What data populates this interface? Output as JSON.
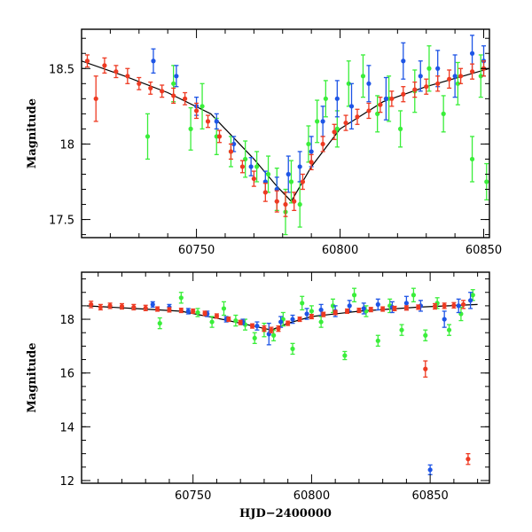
{
  "chart_data": [
    {
      "type": "scatter",
      "title": "",
      "xlabel": "",
      "ylabel": "Magnitude",
      "xlim": [
        60710,
        60852
      ],
      "ylim": [
        18.76,
        17.38
      ],
      "inverted_y": true,
      "x_ticks": [
        60750,
        60800,
        60850
      ],
      "x_tick_labels": [
        "60750",
        "60800",
        "60850"
      ],
      "y_ticks": [
        17.5,
        18,
        18.5
      ],
      "y_tick_labels": [
        "17.5",
        "18",
        "18.5"
      ],
      "grid": false,
      "legend": "none",
      "model_curve": {
        "color": "#000000",
        "x": [
          60710,
          60725,
          60740,
          60755,
          60770,
          60778,
          60783,
          60790,
          60800,
          60815,
          60830,
          60852
        ],
        "y": [
          18.55,
          18.45,
          18.34,
          18.2,
          17.9,
          17.72,
          17.62,
          17.85,
          18.1,
          18.28,
          18.38,
          18.5
        ]
      },
      "series": [
        {
          "color": "#3aee3a",
          "error_bars": true,
          "x": [
            60733,
            60742,
            60748,
            60752,
            60757,
            60762,
            60767,
            60771,
            60775,
            60778,
            60781,
            60783,
            60786,
            60789,
            60792,
            60795,
            60799,
            60803,
            60808,
            60813,
            60817,
            60821,
            60826,
            60831,
            60836,
            60841,
            60846,
            60849,
            60851
          ],
          "y": [
            18.05,
            18.4,
            18.1,
            18.25,
            18.05,
            17.95,
            17.9,
            17.85,
            17.8,
            17.7,
            17.55,
            17.75,
            17.6,
            18.0,
            18.15,
            18.3,
            18.1,
            18.4,
            18.45,
            18.2,
            18.3,
            18.1,
            18.35,
            18.5,
            18.2,
            18.4,
            17.9,
            18.45,
            17.75
          ],
          "err": [
            0.15,
            0.12,
            0.14,
            0.15,
            0.12,
            0.1,
            0.12,
            0.1,
            0.12,
            0.14,
            0.15,
            0.14,
            0.15,
            0.12,
            0.14,
            0.12,
            0.12,
            0.15,
            0.14,
            0.12,
            0.15,
            0.12,
            0.14,
            0.15,
            0.12,
            0.14,
            0.15,
            0.14,
            0.12
          ]
        },
        {
          "color": "#1e55e6",
          "error_bars": true,
          "x": [
            60735,
            60743,
            60750,
            60757,
            60763,
            60769,
            60774,
            60778,
            60782,
            60786,
            60790,
            60794,
            60799,
            60804,
            60810,
            60816,
            60822,
            60828,
            60834,
            60840,
            60846,
            60850
          ],
          "y": [
            18.55,
            18.45,
            18.25,
            18.15,
            18.0,
            17.85,
            17.75,
            17.7,
            17.8,
            17.85,
            17.95,
            18.15,
            18.3,
            18.25,
            18.4,
            18.3,
            18.55,
            18.45,
            18.5,
            18.45,
            18.6,
            18.55
          ],
          "err": [
            0.08,
            0.07,
            0.06,
            0.05,
            0.05,
            0.06,
            0.07,
            0.08,
            0.12,
            0.1,
            0.1,
            0.1,
            0.12,
            0.15,
            0.12,
            0.14,
            0.12,
            0.1,
            0.12,
            0.14,
            0.12,
            0.1
          ]
        },
        {
          "color": "#ee3a22",
          "error_bars": true,
          "x": [
            60712,
            60715,
            60718,
            60722,
            60726,
            60730,
            60734,
            60738,
            60742,
            60746,
            60750,
            60754,
            60758,
            60762,
            60766,
            60770,
            60774,
            60778,
            60781,
            60784,
            60787,
            60790,
            60794,
            60798,
            60802,
            60806,
            60810,
            60814,
            60818,
            60822,
            60826,
            60830,
            60834,
            60838,
            60842,
            60846,
            60850
          ],
          "y": [
            18.55,
            18.3,
            18.52,
            18.48,
            18.45,
            18.4,
            18.37,
            18.35,
            18.32,
            18.3,
            18.22,
            18.15,
            18.05,
            17.95,
            17.85,
            17.77,
            17.68,
            17.62,
            17.6,
            17.62,
            17.75,
            17.88,
            18.0,
            18.08,
            18.14,
            18.18,
            18.22,
            18.26,
            18.3,
            18.33,
            18.36,
            18.38,
            18.4,
            18.43,
            18.45,
            18.48,
            18.5
          ],
          "err": [
            0.04,
            0.15,
            0.05,
            0.04,
            0.05,
            0.04,
            0.04,
            0.04,
            0.05,
            0.04,
            0.05,
            0.04,
            0.04,
            0.05,
            0.04,
            0.05,
            0.06,
            0.07,
            0.08,
            0.06,
            0.05,
            0.05,
            0.05,
            0.05,
            0.05,
            0.05,
            0.05,
            0.05,
            0.05,
            0.05,
            0.05,
            0.05,
            0.05,
            0.06,
            0.05,
            0.05,
            0.05
          ]
        }
      ]
    },
    {
      "type": "scatter",
      "title": "",
      "xlabel": "HJD−2400000",
      "ylabel": "Magnitude",
      "xlim": [
        60703,
        60875
      ],
      "ylim": [
        19.75,
        11.9
      ],
      "inverted_y": true,
      "x_ticks": [
        60750,
        60800,
        60850
      ],
      "x_tick_labels": [
        "60750",
        "60800",
        "60850"
      ],
      "y_ticks": [
        12,
        14,
        16,
        18
      ],
      "y_tick_labels": [
        "12",
        "14",
        "16",
        "18"
      ],
      "grid": false,
      "legend": "none",
      "model_curve": {
        "color": "#000000",
        "x": [
          60705,
          60725,
          60745,
          60765,
          60778,
          60783,
          60790,
          60800,
          60820,
          60845,
          60870
        ],
        "y": [
          18.5,
          18.4,
          18.3,
          17.95,
          17.7,
          17.6,
          17.85,
          18.1,
          18.3,
          18.45,
          18.55
        ]
      },
      "series": [
        {
          "color": "#3aee3a",
          "error_bars": true,
          "x": [
            60736,
            60745,
            60752,
            60758,
            60763,
            60768,
            60772,
            60776,
            60780,
            60784,
            60788,
            60792,
            60796,
            60800,
            60804,
            60809,
            60814,
            60818,
            60823,
            60828,
            60833,
            60838,
            60843,
            60848,
            60853,
            60858,
            60863,
            60868
          ],
          "y": [
            17.85,
            18.8,
            18.25,
            17.9,
            18.4,
            17.95,
            17.8,
            17.3,
            17.6,
            17.4,
            18.0,
            16.9,
            18.6,
            18.3,
            17.9,
            18.5,
            16.65,
            18.9,
            18.3,
            17.2,
            18.5,
            17.6,
            18.9,
            17.4,
            18.6,
            17.6,
            18.2,
            18.9
          ],
          "err": [
            0.2,
            0.2,
            0.15,
            0.2,
            0.25,
            0.2,
            0.2,
            0.2,
            0.25,
            0.2,
            0.25,
            0.2,
            0.25,
            0.2,
            0.2,
            0.25,
            0.15,
            0.25,
            0.2,
            0.2,
            0.25,
            0.2,
            0.25,
            0.2,
            0.2,
            0.2,
            0.25,
            0.2
          ]
        },
        {
          "color": "#1e55e6",
          "error_bars": true,
          "x": [
            60733,
            60740,
            60748,
            60756,
            60764,
            60771,
            60777,
            60782,
            60787,
            60792,
            60798,
            60804,
            60810,
            60816,
            60822,
            60828,
            60834,
            60840,
            60846,
            60850,
            60856,
            60862,
            60867
          ],
          "y": [
            18.55,
            18.45,
            18.3,
            18.2,
            18.0,
            17.9,
            17.75,
            17.45,
            17.9,
            18.0,
            18.2,
            18.35,
            18.3,
            18.5,
            18.4,
            18.55,
            18.45,
            18.6,
            18.5,
            12.4,
            18.0,
            18.5,
            18.7
          ],
          "err": [
            0.1,
            0.1,
            0.1,
            0.1,
            0.1,
            0.1,
            0.15,
            0.4,
            0.2,
            0.15,
            0.2,
            0.2,
            0.2,
            0.2,
            0.2,
            0.2,
            0.2,
            0.25,
            0.2,
            0.18,
            0.3,
            0.25,
            0.3
          ]
        },
        {
          "color": "#ee3a22",
          "error_bars": true,
          "x": [
            60707,
            60711,
            60715,
            60720,
            60725,
            60730,
            60735,
            60740,
            60745,
            60750,
            60755,
            60760,
            60765,
            60770,
            60775,
            60780,
            60783,
            60786,
            60790,
            60795,
            60800,
            60805,
            60810,
            60815,
            60820,
            60825,
            60830,
            60835,
            60840,
            60845,
            60848,
            60852,
            60856,
            60860,
            60864,
            60866
          ],
          "y": [
            18.55,
            18.45,
            18.5,
            18.48,
            18.45,
            18.42,
            18.38,
            18.35,
            18.33,
            18.3,
            18.22,
            18.12,
            18.0,
            17.88,
            17.75,
            17.65,
            17.6,
            17.65,
            17.85,
            18.0,
            18.1,
            18.18,
            18.25,
            18.3,
            18.33,
            18.36,
            18.38,
            18.4,
            18.42,
            18.45,
            16.15,
            18.48,
            18.5,
            18.52,
            18.55,
            12.8
          ],
          "err": [
            0.12,
            0.1,
            0.1,
            0.1,
            0.1,
            0.1,
            0.08,
            0.08,
            0.08,
            0.08,
            0.08,
            0.08,
            0.08,
            0.08,
            0.08,
            0.1,
            0.1,
            0.1,
            0.08,
            0.08,
            0.08,
            0.08,
            0.08,
            0.08,
            0.08,
            0.08,
            0.08,
            0.08,
            0.08,
            0.08,
            0.3,
            0.1,
            0.1,
            0.1,
            0.15,
            0.2
          ]
        }
      ]
    }
  ]
}
